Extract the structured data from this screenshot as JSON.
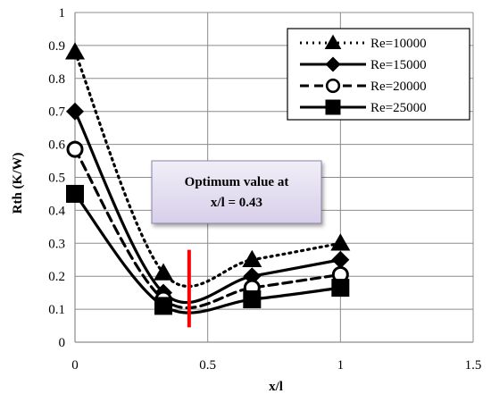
{
  "chart_data": {
    "type": "line",
    "title": "",
    "xlabel": "x/l",
    "ylabel": "Rth (K/W)",
    "xlim": [
      0,
      1.5
    ],
    "ylim": [
      0,
      1
    ],
    "x_ticks": [
      "0",
      "0.5",
      "1",
      "1.5"
    ],
    "x_tick_values": [
      0,
      0.5,
      1,
      1.5
    ],
    "y_ticks": [
      "0",
      "0.1",
      "0.2",
      "0.3",
      "0.4",
      "0.5",
      "0.6",
      "0.7",
      "0.8",
      "0.9",
      "1"
    ],
    "y_tick_values": [
      0,
      0.1,
      0.2,
      0.3,
      0.4,
      0.5,
      0.6,
      0.7,
      0.8,
      0.9,
      1
    ],
    "grid": true,
    "legend_position": "top-right",
    "series": [
      {
        "name": "Re=10000",
        "marker": "triangle",
        "line_style": "dotted",
        "x": [
          0,
          0.333,
          0.667,
          1
        ],
        "y": [
          0.88,
          0.21,
          0.25,
          0.3
        ]
      },
      {
        "name": "Re=15000",
        "marker": "diamond",
        "line_style": "solid",
        "x": [
          0,
          0.333,
          0.667,
          1
        ],
        "y": [
          0.7,
          0.15,
          0.2,
          0.25
        ]
      },
      {
        "name": "Re=20000",
        "marker": "open-circle",
        "line_style": "dashed",
        "x": [
          0,
          0.333,
          0.667,
          1
        ],
        "y": [
          0.585,
          0.13,
          0.165,
          0.205
        ]
      },
      {
        "name": "Re=25000",
        "marker": "square",
        "line_style": "solid",
        "x": [
          0,
          0.333,
          0.667,
          1
        ],
        "y": [
          0.45,
          0.11,
          0.13,
          0.165
        ]
      }
    ],
    "annotation": {
      "text_line1": "Optimum value at",
      "text_line2": "x/l = 0.43",
      "marker_x": 0.43,
      "marker_color": "#ff0000",
      "box_color": "#e8e2f2"
    }
  }
}
